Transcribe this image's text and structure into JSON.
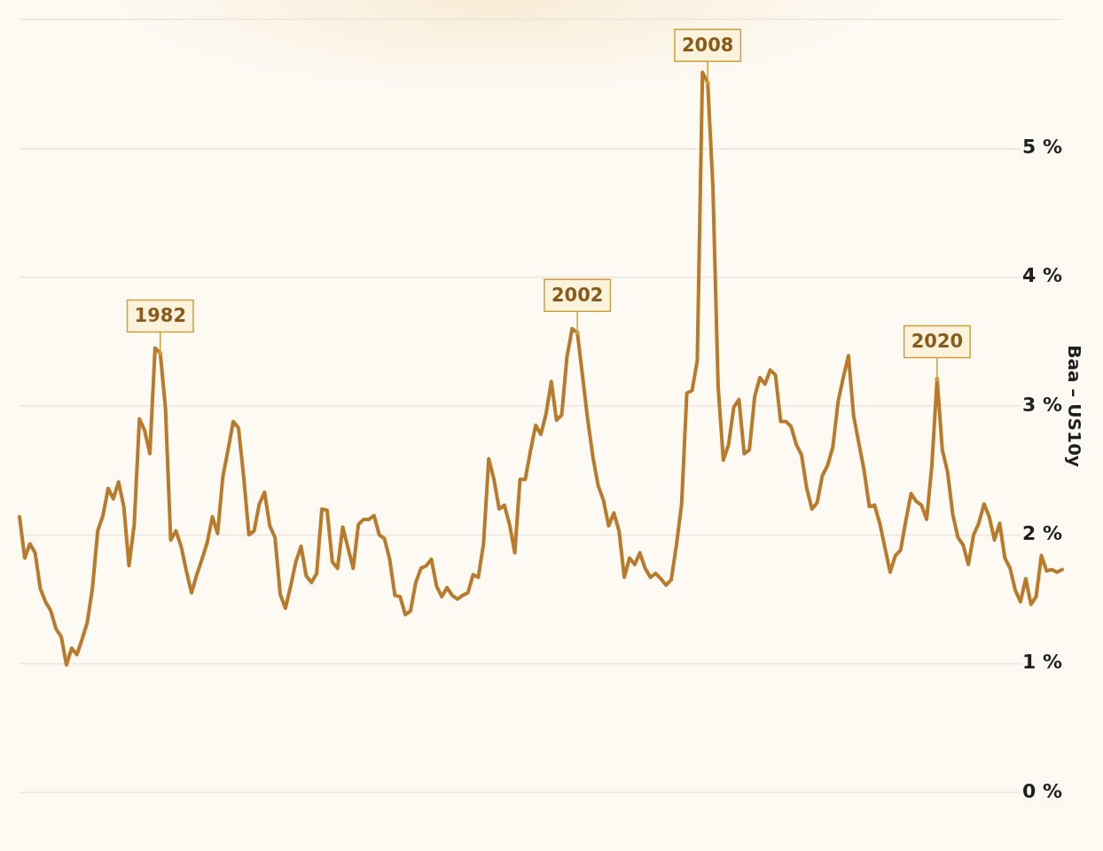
{
  "chart_data": {
    "type": "line",
    "ylabel": "Baa – US10y",
    "categories": [
      null,
      null,
      null,
      null,
      null,
      null,
      null,
      null,
      null,
      null,
      null,
      null,
      null,
      null,
      null,
      null,
      null,
      null,
      null,
      null,
      null,
      null,
      null,
      null,
      null,
      null,
      null,
      null,
      null,
      null,
      null,
      null,
      null,
      null,
      null,
      null,
      null,
      null,
      null,
      null,
      null,
      null,
      null,
      null,
      null,
      null,
      null,
      null,
      null,
      null,
      null,
      null,
      null,
      null,
      null,
      null,
      null,
      null,
      null,
      null,
      null,
      null,
      null,
      null,
      null,
      null,
      null,
      null,
      null,
      null,
      null,
      null,
      null,
      null,
      null,
      null,
      null,
      null,
      null,
      null,
      null,
      null,
      null,
      null,
      null,
      null,
      null,
      null,
      null,
      null,
      null,
      null,
      null,
      null,
      null,
      null,
      null,
      null,
      null,
      null,
      null,
      null,
      null,
      null,
      null,
      null,
      null,
      null,
      null,
      null,
      null,
      null,
      null,
      null,
      null,
      null,
      null,
      null,
      null,
      null,
      null,
      null,
      null,
      null,
      null,
      null,
      null,
      null,
      null,
      null,
      null,
      null,
      null,
      null,
      null,
      null,
      null,
      null,
      null,
      null,
      null,
      null,
      null,
      null,
      null,
      null,
      null,
      null,
      null,
      null,
      null,
      null,
      null,
      null,
      null,
      null,
      null,
      null,
      null,
      null,
      null,
      null,
      null,
      null,
      null,
      null,
      null,
      null,
      null,
      null,
      null,
      null,
      null,
      null,
      null,
      null,
      null,
      null,
      null,
      null,
      null,
      null,
      null,
      null,
      null,
      null,
      null,
      null,
      null,
      null,
      null,
      null,
      null,
      null,
      null,
      null,
      null,
      null,
      null,
      null,
      null
    ],
    "series": [
      {
        "color": "#b97a2b",
        "values": [
          2.14,
          1.82,
          1.93,
          1.86,
          1.58,
          1.48,
          1.41,
          1.27,
          1.21,
          0.99,
          1.12,
          1.07,
          1.19,
          1.32,
          1.59,
          2.03,
          2.15,
          2.36,
          2.28,
          2.41,
          2.22,
          1.76,
          2.08,
          2.9,
          2.81,
          2.63,
          3.45,
          3.41,
          2.98,
          1.96,
          2.03,
          1.91,
          1.72,
          1.55,
          1.69,
          1.81,
          1.94,
          2.14,
          2.01,
          2.45,
          2.66,
          2.88,
          2.83,
          2.45,
          2.0,
          2.03,
          2.24,
          2.33,
          2.07,
          1.98,
          1.54,
          1.43,
          1.6,
          1.79,
          1.91,
          1.68,
          1.63,
          1.7,
          2.2,
          2.19,
          1.79,
          1.74,
          2.06,
          1.9,
          1.74,
          2.08,
          2.12,
          2.12,
          2.15,
          2.0,
          1.97,
          1.81,
          1.53,
          1.52,
          1.38,
          1.41,
          1.63,
          1.74,
          1.76,
          1.81,
          1.6,
          1.52,
          1.59,
          1.53,
          1.5,
          1.53,
          1.55,
          1.69,
          1.67,
          1.93,
          2.59,
          2.43,
          2.2,
          2.23,
          2.08,
          1.86,
          2.43,
          2.43,
          2.65,
          2.85,
          2.78,
          2.94,
          3.19,
          2.89,
          2.93,
          3.38,
          3.6,
          3.57,
          3.23,
          2.89,
          2.6,
          2.38,
          2.27,
          2.07,
          2.17,
          2.03,
          1.67,
          1.82,
          1.77,
          1.86,
          1.74,
          1.67,
          1.7,
          1.66,
          1.61,
          1.65,
          1.92,
          2.24,
          3.1,
          3.12,
          3.35,
          5.59,
          5.51,
          4.7,
          3.15,
          2.58,
          2.7,
          2.99,
          3.05,
          2.63,
          2.66,
          3.07,
          3.22,
          3.17,
          3.28,
          3.24,
          2.88,
          2.88,
          2.84,
          2.7,
          2.62,
          2.36,
          2.2,
          2.25,
          2.46,
          2.54,
          2.68,
          3.03,
          3.22,
          3.39,
          2.92,
          2.71,
          2.5,
          2.22,
          2.23,
          2.09,
          1.9,
          1.71,
          1.84,
          1.88,
          2.11,
          2.32,
          2.26,
          2.23,
          2.12,
          2.54,
          3.21,
          2.66,
          2.49,
          2.16,
          1.98,
          1.92,
          1.77,
          2.0,
          2.09,
          2.24,
          2.14,
          1.96,
          2.09,
          1.82,
          1.74,
          1.57,
          1.48,
          1.66,
          1.46,
          1.52,
          1.84,
          1.72,
          1.73,
          1.71,
          1.73
        ]
      }
    ],
    "ylim": [
      0,
      6
    ],
    "yticks": [
      {
        "value": 0,
        "label": "0 %"
      },
      {
        "value": 1,
        "label": "1 %"
      },
      {
        "value": 2,
        "label": "2 %"
      },
      {
        "value": 3,
        "label": "3 %"
      },
      {
        "value": 4,
        "label": "4 %"
      },
      {
        "value": 5,
        "label": "5 %"
      },
      {
        "value": 6,
        "label": null
      }
    ],
    "grid": "y",
    "tick_labels": "y",
    "legend": false,
    "marker": "none",
    "line_style": "solid",
    "annotations": [
      {
        "text": "1982",
        "y": 3.41
      },
      {
        "text": "2002",
        "y": 3.57
      },
      {
        "text": "2008",
        "y": 5.51
      },
      {
        "text": "2020",
        "y": 3.21
      }
    ]
  }
}
